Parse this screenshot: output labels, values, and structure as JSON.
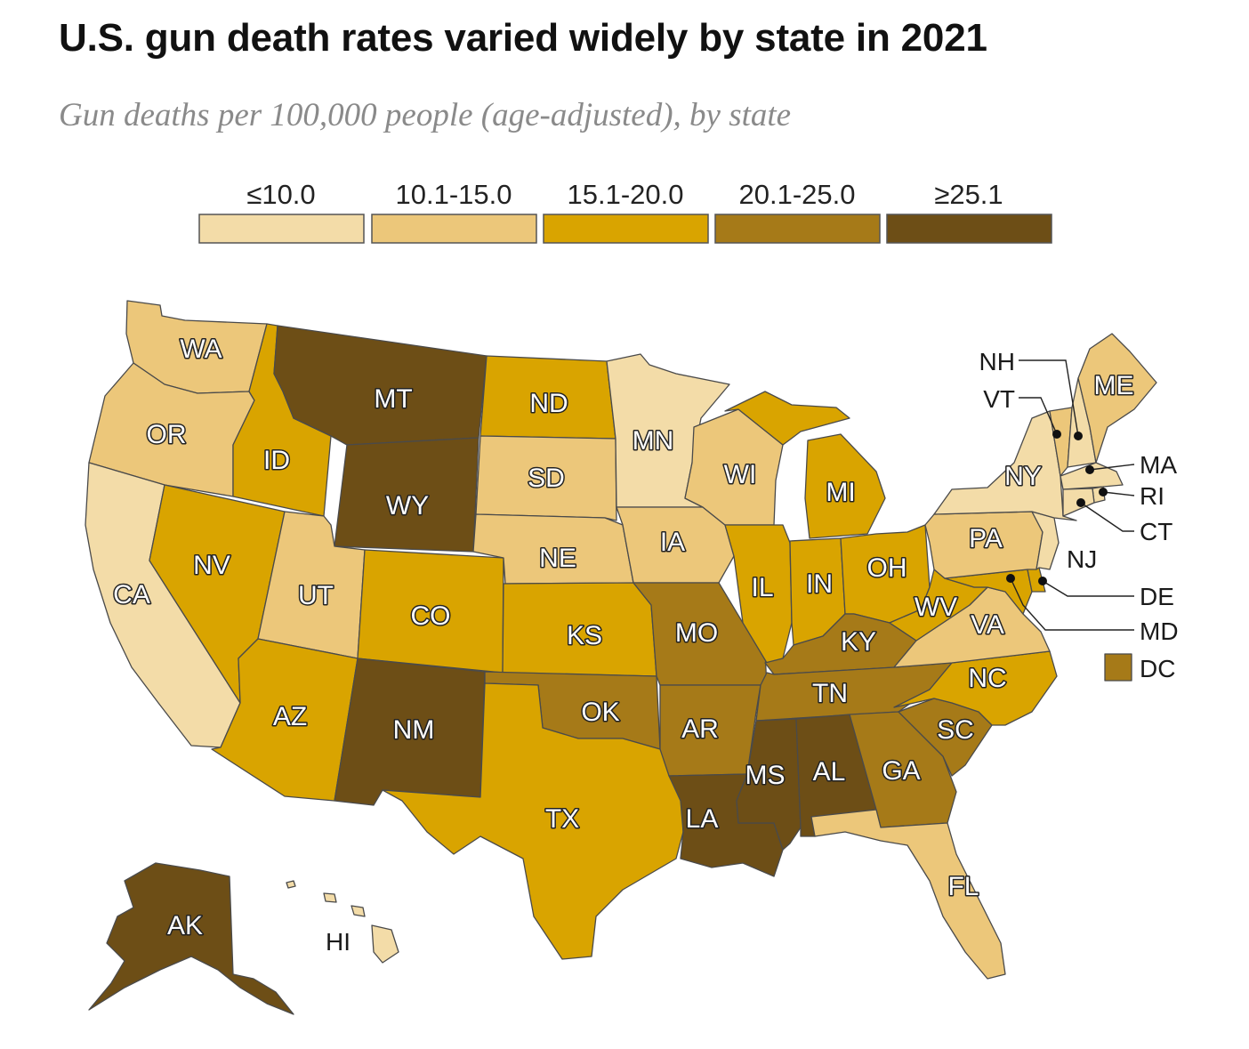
{
  "title": "U.S. gun death rates varied widely by state in 2021",
  "subtitle": "Gun deaths per 100,000 people (age-adjusted), by state",
  "legend": [
    {
      "label": "≤10.0",
      "color": "#f3dca8"
    },
    {
      "label": "10.1-15.0",
      "color": "#ecc77a"
    },
    {
      "label": "15.1-20.0",
      "color": "#d9a400"
    },
    {
      "label": "20.1-25.0",
      "color": "#a67a18"
    },
    {
      "label": "≥25.1",
      "color": "#6d4e16"
    }
  ],
  "states": {
    "WA": 1,
    "OR": 1,
    "CA": 0,
    "NV": 2,
    "ID": 2,
    "MT": 4,
    "WY": 4,
    "UT": 1,
    "AZ": 2,
    "CO": 2,
    "NM": 4,
    "ND": 2,
    "SD": 1,
    "NE": 1,
    "KS": 2,
    "OK": 3,
    "TX": 2,
    "MN": 0,
    "IA": 1,
    "MO": 3,
    "AR": 3,
    "LA": 4,
    "WI": 1,
    "IL": 2,
    "MI": 2,
    "IN": 2,
    "OH": 2,
    "KY": 3,
    "TN": 3,
    "MS": 4,
    "AL": 4,
    "GA": 3,
    "FL": 1,
    "SC": 3,
    "NC": 2,
    "VA": 1,
    "WV": 2,
    "PA": 1,
    "NY": 0,
    "VT": 1,
    "NH": 0,
    "ME": 1,
    "MA": 0,
    "RI": 0,
    "CT": 0,
    "NJ": 0,
    "DE": 2,
    "MD": 2,
    "DC": 3,
    "AK": 4,
    "HI": 0
  },
  "callouts": {
    "NH": "NH",
    "VT": "VT",
    "MA": "MA",
    "RI": "RI",
    "CT": "CT",
    "NJ": "NJ",
    "DE": "DE",
    "MD": "MD",
    "DC": "DC",
    "HI": "HI"
  }
}
